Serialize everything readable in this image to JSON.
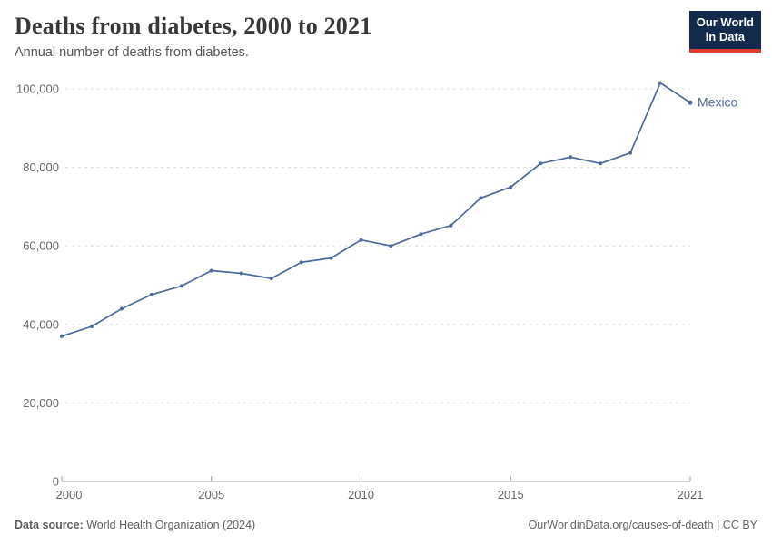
{
  "header": {
    "title": "Deaths from diabetes, 2000 to 2021",
    "subtitle": "Annual number of deaths from diabetes.",
    "logo": {
      "line1": "Our World",
      "line2": "in Data"
    }
  },
  "chart_data": {
    "type": "line",
    "title": "Deaths from diabetes, 2000 to 2021",
    "subtitle": "Annual number of deaths from diabetes.",
    "xlabel": "",
    "ylabel": "",
    "xlim": [
      2000,
      2021
    ],
    "ylim": [
      0,
      104000
    ],
    "grid": "horizontal-dashed",
    "legend_position": "line-end-label",
    "xtick_values": [
      2000,
      2005,
      2010,
      2015,
      2021
    ],
    "xtick_labels": [
      "2000",
      "2005",
      "2010",
      "2015",
      "2021"
    ],
    "ytick_values": [
      0,
      20000,
      40000,
      60000,
      80000,
      100000
    ],
    "ytick_labels": [
      "0",
      "20,000",
      "40,000",
      "60,000",
      "80,000",
      "100,000"
    ],
    "series": [
      {
        "name": "Mexico",
        "color": "#4c6a9c",
        "x": [
          2000,
          2001,
          2002,
          2003,
          2004,
          2005,
          2006,
          2007,
          2008,
          2009,
          2010,
          2011,
          2012,
          2013,
          2014,
          2015,
          2016,
          2017,
          2018,
          2019,
          2020,
          2021
        ],
        "values": [
          37000,
          39500,
          44000,
          47600,
          49800,
          53700,
          53000,
          51700,
          55800,
          56900,
          61500,
          60000,
          63000,
          65200,
          72200,
          75000,
          81000,
          82600,
          81000,
          83700,
          101500,
          96500
        ]
      }
    ]
  },
  "footer": {
    "datasource_label": "Data source:",
    "datasource_value": " World Health Organization (2024)",
    "credit": "OurWorldinData.org/causes-of-death | CC BY"
  },
  "colors": {
    "line": "#4c6a9c",
    "gridline": "#dddddd",
    "axis": "#a1a1a1",
    "tick_text": "#666666",
    "title_text": "#383838",
    "subtitle_text": "#555555",
    "logo_bg": "#132a4d",
    "logo_accent": "#dc3b33"
  }
}
